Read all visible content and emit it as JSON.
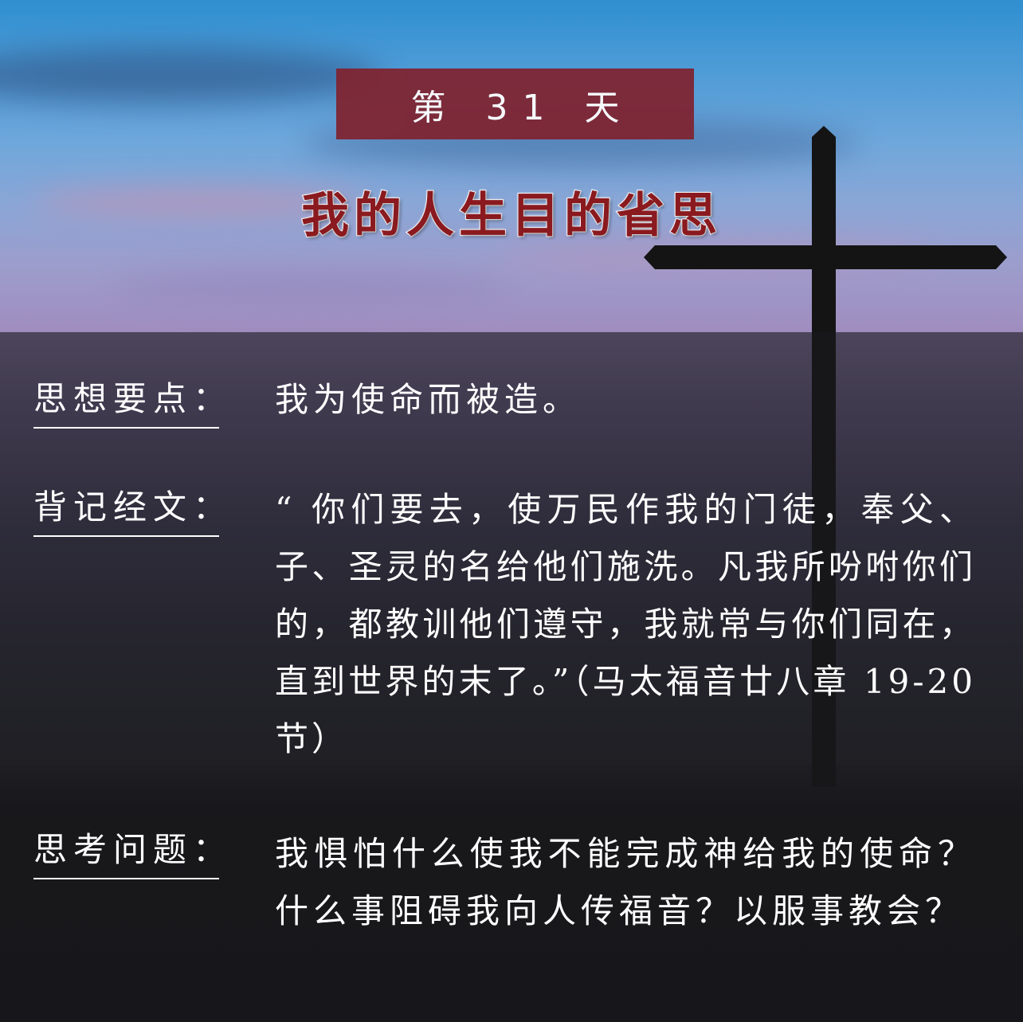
{
  "header": {
    "day_label": "第 31 天",
    "title": "我的人生目的省思"
  },
  "sections": [
    {
      "label": "思想要点：",
      "text": "我为使命而被造。"
    },
    {
      "label": "背记经文：",
      "text": "“ 你们要去，使万民作我的门徒，奉父、子、圣灵的名给他们施洗。凡我所吩咐你们的，都教训他们遵守，我就常与你们同在，直到世界的末了。”（马太福音廿八章 19-20 节）"
    },
    {
      "label": "思考问题：",
      "text": "我惧怕什么使我不能完成神给我的使命？什么事阻碍我向人传福音？以服事教会？"
    }
  ],
  "colors": {
    "badge": "#7e2533",
    "title": "#8a1a1f",
    "text": "#ffffff"
  }
}
